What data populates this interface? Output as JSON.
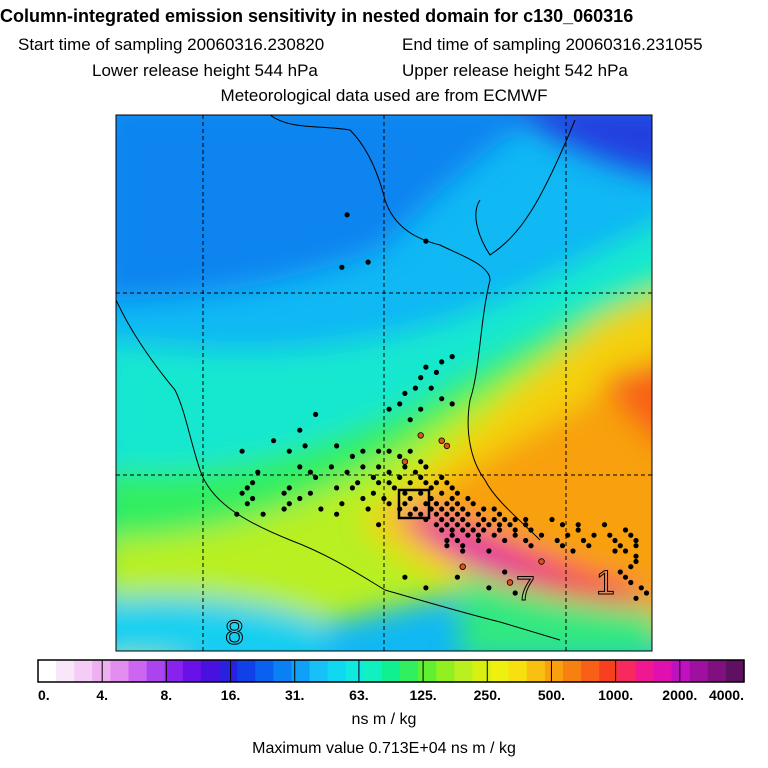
{
  "header": {
    "title": "Column-integrated emission sensitivity in nested domain for c130_060316",
    "start_label": "Start time of sampling 20060316.230820",
    "end_label": "End time of sampling 20060316.231055",
    "lower_label": "Lower release height  544 hPa",
    "upper_label": "Upper release height  542 hPa",
    "met_label": "Meteorological data used are from ECMWF"
  },
  "chart_data": {
    "type": "heatmap",
    "title": "Column-integrated emission sensitivity in nested domain for c130_060316",
    "colorbar": {
      "tick_labels": [
        "0.",
        "4.",
        "8.",
        "16.",
        "31.",
        "63.",
        "125.",
        "250.",
        "500.",
        "1000.",
        "2000.",
        "4000."
      ],
      "tick_values": [
        0,
        4,
        8,
        16,
        31,
        63,
        125,
        250,
        500,
        1000,
        2000,
        4000
      ],
      "units": "ns m / kg",
      "colors": [
        "#ffffff",
        "#fae6fa",
        "#f5ccf5",
        "#eeb0f0",
        "#e28ef0",
        "#cc66f0",
        "#aa44ee",
        "#8a22ee",
        "#6a10e8",
        "#4a10e0",
        "#2a20e0",
        "#1040e8",
        "#0a60f0",
        "#0a80f5",
        "#10a0f8",
        "#18c0f8",
        "#10d8f0",
        "#10e8e0",
        "#10f0c0",
        "#10f090",
        "#30f060",
        "#60f030",
        "#90f020",
        "#b8f020",
        "#d8f010",
        "#f0f010",
        "#f8e010",
        "#f8c010",
        "#f8a010",
        "#f88010",
        "#f86018",
        "#f84020",
        "#f82860",
        "#f01890",
        "#e010b0",
        "#c010c0",
        "#a010a0",
        "#801080",
        "#601060"
      ],
      "max_label": "Maximum value  0.713E+04 ns m / kg"
    },
    "map_markers": [
      "7",
      "1",
      "8"
    ],
    "points": [
      [
        0.44,
        0.19
      ],
      [
        0.48,
        0.28
      ],
      [
        0.43,
        0.29
      ],
      [
        0.59,
        0.24
      ],
      [
        0.64,
        0.46
      ],
      [
        0.62,
        0.47
      ],
      [
        0.59,
        0.48
      ],
      [
        0.61,
        0.49
      ],
      [
        0.58,
        0.5
      ],
      [
        0.57,
        0.52
      ],
      [
        0.6,
        0.52
      ],
      [
        0.55,
        0.53
      ],
      [
        0.62,
        0.54
      ],
      [
        0.64,
        0.55
      ],
      [
        0.54,
        0.55
      ],
      [
        0.58,
        0.56
      ],
      [
        0.52,
        0.56
      ],
      [
        0.38,
        0.57
      ],
      [
        0.56,
        0.58
      ],
      [
        0.35,
        0.6
      ],
      [
        0.3,
        0.62
      ],
      [
        0.36,
        0.63
      ],
      [
        0.42,
        0.63
      ],
      [
        0.24,
        0.64
      ],
      [
        0.33,
        0.64
      ],
      [
        0.47,
        0.64
      ],
      [
        0.5,
        0.64
      ],
      [
        0.52,
        0.64
      ],
      [
        0.56,
        0.64
      ],
      [
        0.45,
        0.65
      ],
      [
        0.54,
        0.65
      ],
      [
        0.58,
        0.66
      ],
      [
        0.35,
        0.67
      ],
      [
        0.41,
        0.67
      ],
      [
        0.47,
        0.67
      ],
      [
        0.5,
        0.67
      ],
      [
        0.55,
        0.67
      ],
      [
        0.59,
        0.67
      ],
      [
        0.27,
        0.68
      ],
      [
        0.37,
        0.68
      ],
      [
        0.44,
        0.68
      ],
      [
        0.52,
        0.68
      ],
      [
        0.57,
        0.68
      ],
      [
        0.38,
        0.69
      ],
      [
        0.49,
        0.69
      ],
      [
        0.54,
        0.69
      ],
      [
        0.58,
        0.69
      ],
      [
        0.62,
        0.69
      ],
      [
        0.26,
        0.7
      ],
      [
        0.46,
        0.7
      ],
      [
        0.5,
        0.7
      ],
      [
        0.52,
        0.7
      ],
      [
        0.56,
        0.7
      ],
      [
        0.59,
        0.7
      ],
      [
        0.61,
        0.7
      ],
      [
        0.63,
        0.7
      ],
      [
        0.25,
        0.71
      ],
      [
        0.33,
        0.71
      ],
      [
        0.42,
        0.71
      ],
      [
        0.45,
        0.71
      ],
      [
        0.53,
        0.71
      ],
      [
        0.6,
        0.71
      ],
      [
        0.64,
        0.71
      ],
      [
        0.24,
        0.72
      ],
      [
        0.32,
        0.72
      ],
      [
        0.37,
        0.72
      ],
      [
        0.49,
        0.72
      ],
      [
        0.55,
        0.72
      ],
      [
        0.58,
        0.72
      ],
      [
        0.62,
        0.72
      ],
      [
        0.65,
        0.72
      ],
      [
        0.26,
        0.73
      ],
      [
        0.35,
        0.73
      ],
      [
        0.47,
        0.73
      ],
      [
        0.51,
        0.73
      ],
      [
        0.56,
        0.73
      ],
      [
        0.6,
        0.73
      ],
      [
        0.64,
        0.73
      ],
      [
        0.67,
        0.73
      ],
      [
        0.25,
        0.74
      ],
      [
        0.33,
        0.74
      ],
      [
        0.43,
        0.74
      ],
      [
        0.52,
        0.74
      ],
      [
        0.55,
        0.74
      ],
      [
        0.59,
        0.74
      ],
      [
        0.61,
        0.74
      ],
      [
        0.63,
        0.74
      ],
      [
        0.65,
        0.74
      ],
      [
        0.68,
        0.74
      ],
      [
        0.32,
        0.75
      ],
      [
        0.39,
        0.75
      ],
      [
        0.48,
        0.75
      ],
      [
        0.54,
        0.75
      ],
      [
        0.57,
        0.75
      ],
      [
        0.6,
        0.75
      ],
      [
        0.62,
        0.75
      ],
      [
        0.64,
        0.75
      ],
      [
        0.66,
        0.75
      ],
      [
        0.7,
        0.75
      ],
      [
        0.72,
        0.75
      ],
      [
        0.23,
        0.76
      ],
      [
        0.28,
        0.76
      ],
      [
        0.42,
        0.76
      ],
      [
        0.56,
        0.76
      ],
      [
        0.58,
        0.76
      ],
      [
        0.61,
        0.76
      ],
      [
        0.63,
        0.76
      ],
      [
        0.65,
        0.76
      ],
      [
        0.67,
        0.76
      ],
      [
        0.69,
        0.76
      ],
      [
        0.73,
        0.76
      ],
      [
        0.59,
        0.77
      ],
      [
        0.62,
        0.77
      ],
      [
        0.64,
        0.77
      ],
      [
        0.66,
        0.77
      ],
      [
        0.7,
        0.77
      ],
      [
        0.72,
        0.77
      ],
      [
        0.74,
        0.77
      ],
      [
        0.76,
        0.77
      ],
      [
        0.78,
        0.77
      ],
      [
        0.83,
        0.77
      ],
      [
        0.5,
        0.78
      ],
      [
        0.61,
        0.78
      ],
      [
        0.63,
        0.78
      ],
      [
        0.65,
        0.78
      ],
      [
        0.67,
        0.78
      ],
      [
        0.69,
        0.78
      ],
      [
        0.71,
        0.78
      ],
      [
        0.73,
        0.78
      ],
      [
        0.75,
        0.78
      ],
      [
        0.78,
        0.78
      ],
      [
        0.85,
        0.78
      ],
      [
        0.88,
        0.78
      ],
      [
        0.93,
        0.78
      ],
      [
        0.62,
        0.79
      ],
      [
        0.64,
        0.79
      ],
      [
        0.66,
        0.79
      ],
      [
        0.68,
        0.79
      ],
      [
        0.7,
        0.79
      ],
      [
        0.73,
        0.79
      ],
      [
        0.76,
        0.79
      ],
      [
        0.79,
        0.79
      ],
      [
        0.88,
        0.79
      ],
      [
        0.97,
        0.79
      ],
      [
        0.64,
        0.8
      ],
      [
        0.67,
        0.8
      ],
      [
        0.69,
        0.8
      ],
      [
        0.72,
        0.8
      ],
      [
        0.76,
        0.8
      ],
      [
        0.81,
        0.8
      ],
      [
        0.86,
        0.8
      ],
      [
        0.91,
        0.8
      ],
      [
        0.94,
        0.8
      ],
      [
        0.98,
        0.8
      ],
      [
        0.63,
        0.81
      ],
      [
        0.65,
        0.81
      ],
      [
        0.69,
        0.81
      ],
      [
        0.74,
        0.81
      ],
      [
        0.78,
        0.81
      ],
      [
        0.84,
        0.81
      ],
      [
        0.89,
        0.81
      ],
      [
        0.95,
        0.81
      ],
      [
        0.99,
        0.81
      ],
      [
        0.63,
        0.82
      ],
      [
        0.66,
        0.82
      ],
      [
        0.79,
        0.82
      ],
      [
        0.85,
        0.82
      ],
      [
        0.9,
        0.82
      ],
      [
        0.96,
        0.82
      ],
      [
        0.99,
        0.82
      ],
      [
        0.66,
        0.83
      ],
      [
        0.71,
        0.83
      ],
      [
        0.87,
        0.83
      ],
      [
        0.95,
        0.83
      ],
      [
        0.97,
        0.83
      ],
      [
        0.99,
        0.84
      ],
      [
        0.99,
        0.85
      ],
      [
        0.98,
        0.86
      ],
      [
        0.96,
        0.87
      ],
      [
        0.97,
        0.88
      ],
      [
        0.98,
        0.89
      ],
      [
        1.0,
        0.9
      ],
      [
        1.01,
        0.91
      ],
      [
        0.99,
        0.92
      ],
      [
        0.65,
        0.88
      ],
      [
        0.59,
        0.9
      ],
      [
        0.71,
        0.9
      ],
      [
        0.76,
        0.91
      ],
      [
        0.74,
        0.87
      ],
      [
        0.55,
        0.88
      ]
    ],
    "highlight_points": [
      [
        0.58,
        0.61
      ],
      [
        0.62,
        0.62
      ],
      [
        0.55,
        0.66
      ],
      [
        0.63,
        0.63
      ],
      [
        0.66,
        0.86
      ],
      [
        0.75,
        0.89
      ],
      [
        0.81,
        0.85
      ]
    ]
  }
}
